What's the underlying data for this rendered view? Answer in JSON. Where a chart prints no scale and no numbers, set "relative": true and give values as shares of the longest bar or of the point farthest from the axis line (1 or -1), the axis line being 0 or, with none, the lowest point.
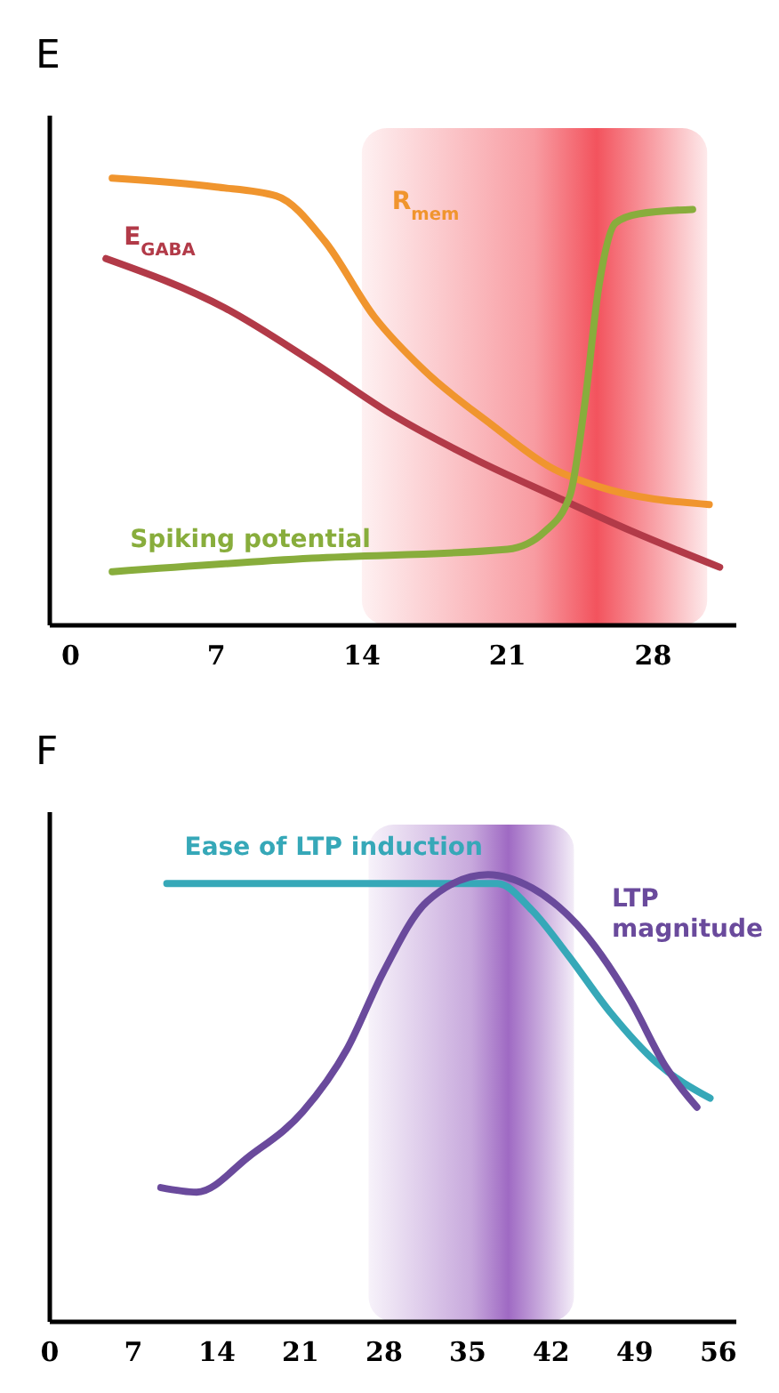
{
  "chart_data": [
    {
      "type": "line",
      "title": "E",
      "relative": true,
      "xlim": [
        -1,
        32
      ],
      "xticks": [
        0,
        7,
        14,
        21,
        28
      ],
      "marker": "none",
      "line_style": "solid",
      "bands": [
        {
          "axis": "x",
          "from": 14,
          "to": 30.6,
          "color": "#f24a55"
        }
      ],
      "series": [
        {
          "name": "R$_{mem}$",
          "color": "#f0952e",
          "x": [
            2,
            7,
            9.9,
            12.2,
            14.6,
            17,
            20.2,
            23.2,
            25.4,
            30.7
          ],
          "values": [
            1.0,
            0.98,
            0.96,
            0.86,
            0.69,
            0.57,
            0.45,
            0.35,
            0.31,
            0.27
          ]
        },
        {
          "name": "E$_{GABA}$",
          "color": "#b23a48",
          "x": [
            1.7,
            7.4,
            11.6,
            15.5,
            19.5,
            23.2,
            27,
            31.2
          ],
          "values": [
            0.82,
            0.71,
            0.59,
            0.47,
            0.37,
            0.29,
            0.21,
            0.13
          ]
        },
        {
          "name": "Spiking potential",
          "color": "#88ad3c",
          "x": [
            2,
            11.6,
            21,
            22.8,
            24,
            24.7,
            25.4,
            26.2,
            27.3,
            29.9
          ],
          "values": [
            0.12,
            0.15,
            0.17,
            0.21,
            0.29,
            0.49,
            0.76,
            0.9,
            0.92,
            0.93
          ]
        }
      ]
    },
    {
      "type": "line",
      "title": "F",
      "relative": true,
      "xlim": [
        0,
        57.5
      ],
      "xticks": [
        0,
        7,
        14,
        21,
        28,
        35,
        42,
        49,
        56
      ],
      "marker": "none",
      "line_style": "solid",
      "bands": [
        {
          "axis": "x",
          "from": 26.7,
          "to": 43.9,
          "color": "#9a62c0"
        }
      ],
      "series": [
        {
          "name": "Ease of LTP induction",
          "color": "#36a8b8",
          "x": [
            9.8,
            20,
            30,
            37.5,
            40.4,
            43.4,
            47,
            50.8,
            55.3
          ],
          "values": [
            0.98,
            0.98,
            0.98,
            0.98,
            0.92,
            0.82,
            0.69,
            0.58,
            0.5
          ]
        },
        {
          "name": "LTP magnitude",
          "color": "#6a4a9c",
          "x": [
            9.3,
            12.3,
            16.7,
            21.2,
            24.9,
            27.9,
            31.6,
            36.7,
            40.4,
            44.1,
            48.6,
            51.6,
            54.2
          ],
          "values": [
            0.3,
            0.29,
            0.37,
            0.47,
            0.61,
            0.78,
            0.94,
            1.0,
            0.97,
            0.89,
            0.72,
            0.57,
            0.48
          ]
        }
      ]
    }
  ]
}
